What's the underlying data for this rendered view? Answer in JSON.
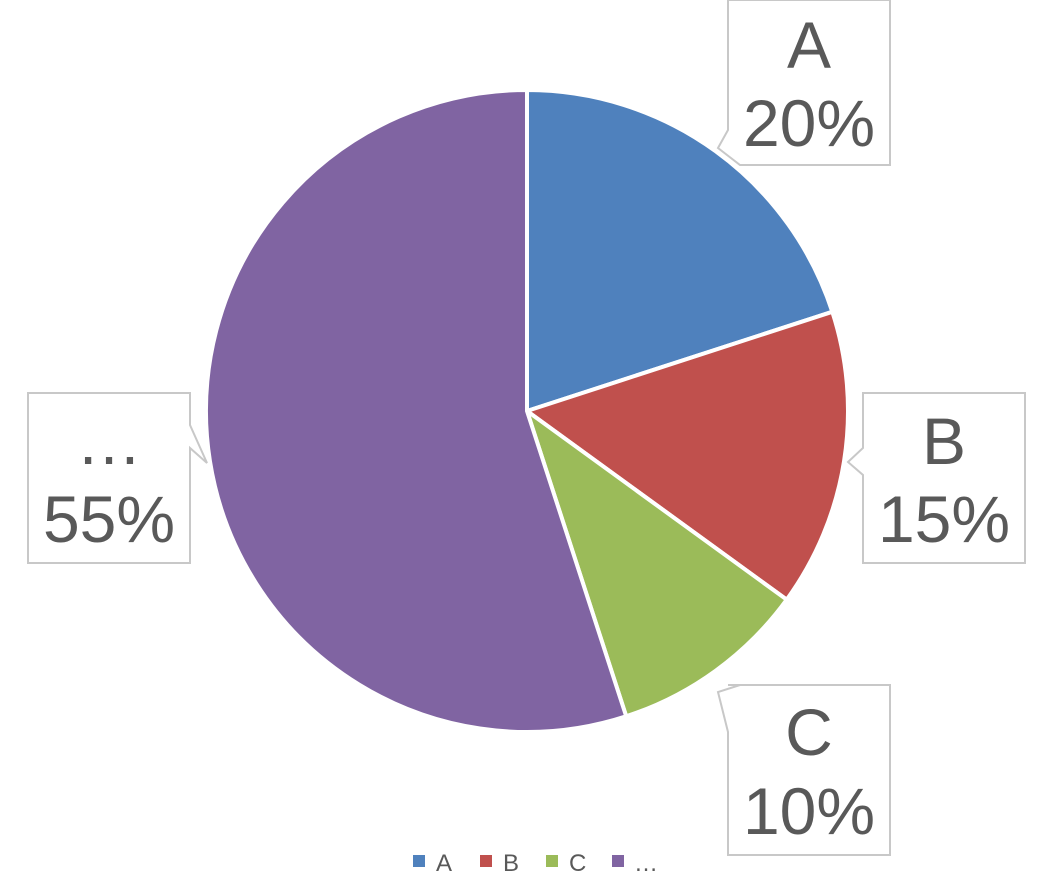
{
  "chart_data": {
    "type": "pie",
    "categories": [
      "A",
      "B",
      "C",
      "…"
    ],
    "values": [
      20,
      15,
      10,
      55
    ],
    "labels": [
      "20%",
      "15%",
      "10%",
      "55%"
    ],
    "colors": [
      "#4f81bd",
      "#c0504d",
      "#9bbb59",
      "#8064a2"
    ],
    "legend_position": "bottom",
    "data_labels": "callouts with category name and percentage"
  }
}
